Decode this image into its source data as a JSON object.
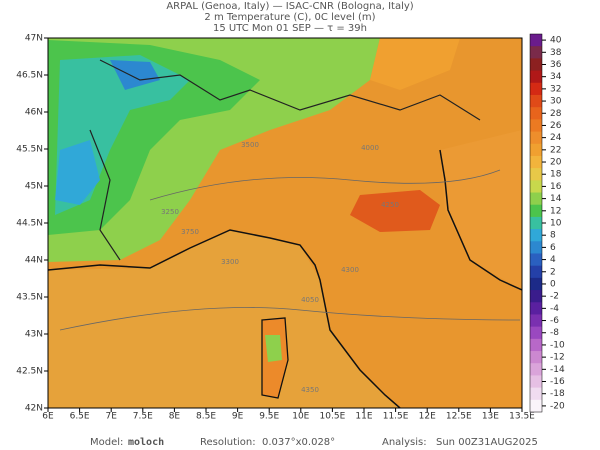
{
  "header": {
    "line1": "ARPAL (Genoa, Italy)  —  ISAC-CNR (Bologna, Italy)",
    "line2": "2 m Temperature (C), 0C level (m)",
    "line3": "15 UTC Mon 01 SEP  —  τ = 39h"
  },
  "map": {
    "lon_labels": [
      "6E",
      "6.5E",
      "7E",
      "7.5E",
      "8E",
      "8.5E",
      "9E",
      "9.5E",
      "10E",
      "10.5E",
      "11E",
      "11.5E",
      "12E",
      "12.5E",
      "13E",
      "13.5E"
    ],
    "lat_labels": [
      "47N",
      "46.5N",
      "46N",
      "45.5N",
      "45N",
      "44.5N",
      "44N",
      "43.5N",
      "43N",
      "42.5N",
      "42N"
    ],
    "contour_labels": [
      "3250",
      "3750",
      "3500",
      "4000",
      "4250",
      "4300",
      "4050",
      "3300",
      "4350"
    ]
  },
  "colorbar": {
    "ticks": [
      40,
      38,
      36,
      34,
      32,
      30,
      28,
      26,
      24,
      22,
      20,
      18,
      16,
      14,
      12,
      10,
      8,
      6,
      4,
      2,
      0,
      -2,
      -4,
      -6,
      -8,
      -10,
      -12,
      -14,
      -16,
      -18,
      -20
    ],
    "colors": [
      "#6a1c8c",
      "#7a2a4a",
      "#8c2020",
      "#b01818",
      "#d42a14",
      "#e04a18",
      "#e8641c",
      "#ec7a22",
      "#ee8e2c",
      "#f0a030",
      "#f2b43c",
      "#e8c848",
      "#c8d84c",
      "#8ed04c",
      "#4cc44c",
      "#38c0a0",
      "#30a8d8",
      "#2c88d0",
      "#2a60c0",
      "#2440a8",
      "#1c2a88",
      "#3a1c8c",
      "#5a20a0",
      "#7a30b0",
      "#9a48c0",
      "#b868c8",
      "#cc88d0",
      "#daa4da",
      "#e6c0e4",
      "#f0dcf0",
      "#faf4fa"
    ]
  },
  "footer": {
    "model_label": "Model:",
    "model": "moloch",
    "resolution_label": "Resolution:",
    "resolution": "0.037°x0.028°",
    "analysis_label": "Analysis:",
    "analysis": "Sun 00Z31AUG2025"
  }
}
